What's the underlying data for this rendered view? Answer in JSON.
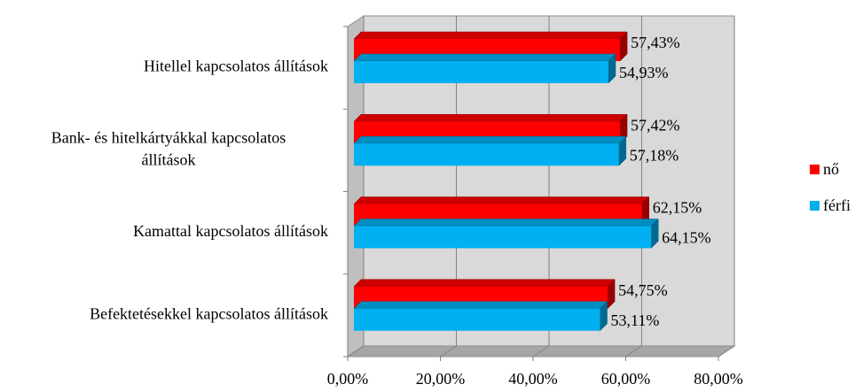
{
  "chart_data": {
    "type": "bar",
    "orientation": "horizontal",
    "style": "3d",
    "categories": [
      "Hitellel kapcsolatos állítások",
      "Bank- és hitelkártyákkal kapcsolatos állítások",
      "Kamattal kapcsolatos állítások",
      "Befektetésekkel kapcsolatos állítások"
    ],
    "category_lines": [
      [
        "Hitellel kapcsolatos állítások"
      ],
      [
        "Bank- és hitelkártyákkal kapcsolatos",
        "állítások"
      ],
      [
        "Kamattal kapcsolatos állítások"
      ],
      [
        "Befektetésekkel kapcsolatos állítások"
      ]
    ],
    "series": [
      {
        "name": "nő",
        "color": "#ff0000",
        "values": [
          57.43,
          57.42,
          62.15,
          54.75
        ],
        "labels": [
          "57,43%",
          "57,42%",
          "62,15%",
          "54,75%"
        ]
      },
      {
        "name": "férfi",
        "color": "#00b0f0",
        "values": [
          54.93,
          57.18,
          64.15,
          53.11
        ],
        "labels": [
          "54,93%",
          "57,18%",
          "64,15%",
          "53,11%"
        ]
      }
    ],
    "xlim": [
      0,
      80
    ],
    "ticks": [
      0,
      20,
      40,
      60,
      80
    ],
    "tick_labels": [
      "0,00%",
      "20,00%",
      "40,00%",
      "60,00%",
      "80,00%"
    ],
    "grid": true,
    "legend": "right",
    "title": "",
    "xlabel": "",
    "ylabel": ""
  }
}
